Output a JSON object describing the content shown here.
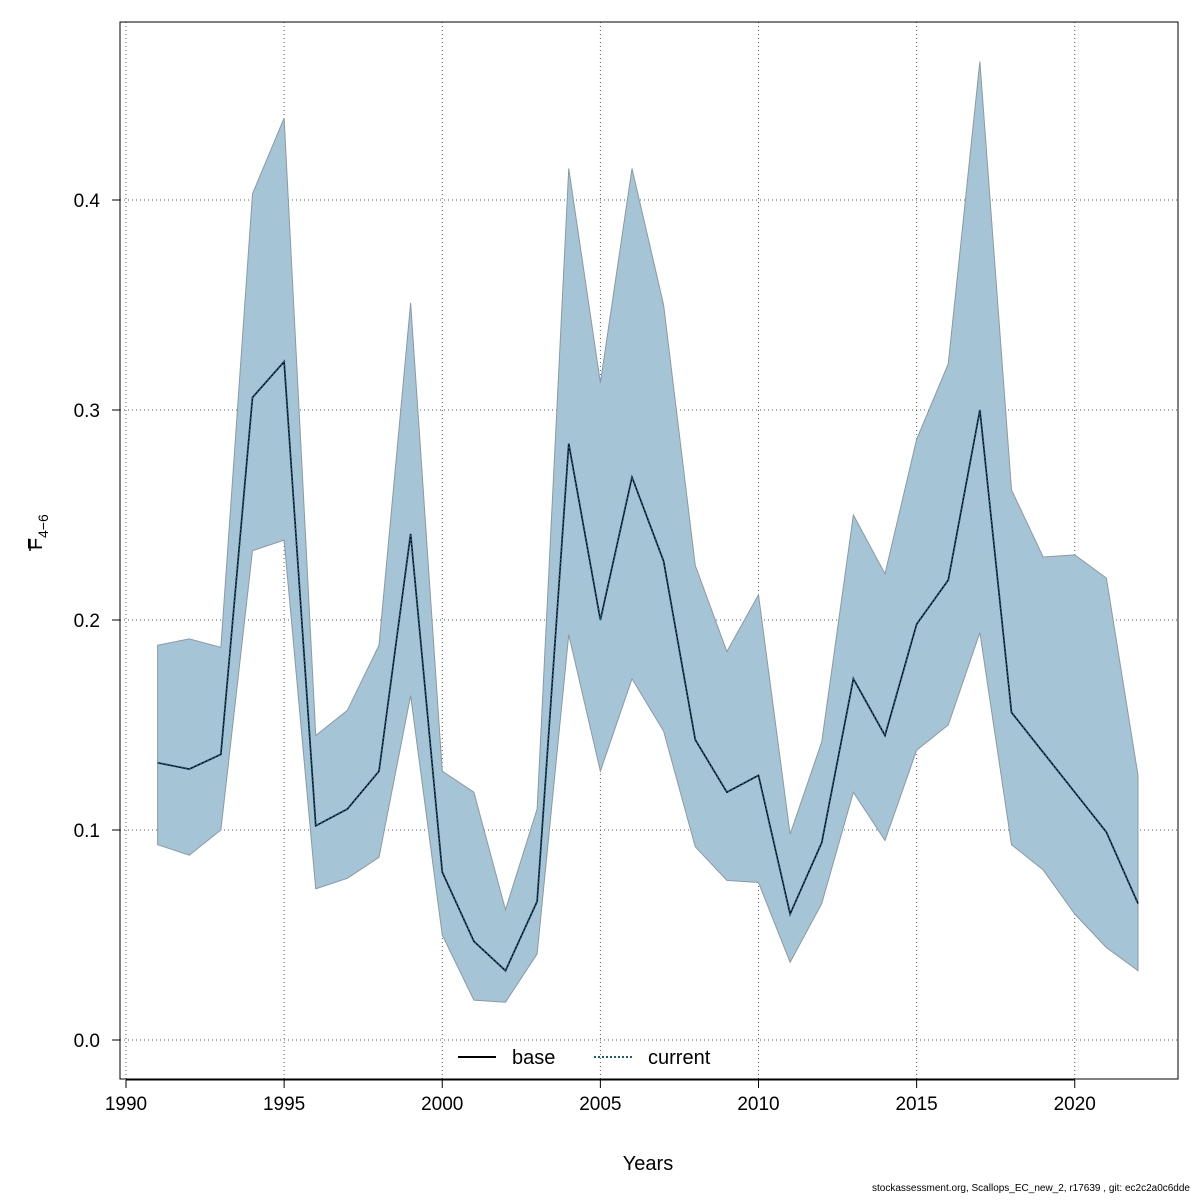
{
  "chart_data": {
    "type": "area",
    "xlabel": "Years",
    "ylabel_main": "F",
    "ylabel_sub": "4−6",
    "xlim": [
      1990,
      2022
    ],
    "ylim": [
      0,
      0.47
    ],
    "x_ticks": [
      1990,
      1995,
      2000,
      2005,
      2010,
      2015,
      2020
    ],
    "y_ticks": [
      0.0,
      0.1,
      0.2,
      0.3,
      0.4
    ],
    "y_tick_labels": [
      "0.0",
      "0.1",
      "0.2",
      "0.3",
      "0.4"
    ],
    "grid": true,
    "legend_placement": "bottom-center",
    "x": [
      1991,
      1992,
      1993,
      1994,
      1995,
      1996,
      1997,
      1998,
      1999,
      2000,
      2001,
      2002,
      2003,
      2004,
      2005,
      2006,
      2007,
      2008,
      2009,
      2010,
      2011,
      2012,
      2013,
      2014,
      2015,
      2016,
      2017,
      2018,
      2019,
      2020,
      2021,
      2022
    ],
    "band_upper": [
      0.188,
      0.191,
      0.187,
      0.403,
      0.439,
      0.145,
      0.157,
      0.188,
      0.351,
      0.128,
      0.118,
      0.062,
      0.11,
      0.415,
      0.313,
      0.415,
      0.35,
      0.226,
      0.185,
      0.212,
      0.098,
      0.142,
      0.25,
      0.222,
      0.286,
      0.322,
      0.466,
      0.262,
      0.23,
      0.231,
      0.22,
      0.126
    ],
    "band_lower": [
      0.093,
      0.088,
      0.1,
      0.233,
      0.238,
      0.072,
      0.077,
      0.087,
      0.164,
      0.05,
      0.019,
      0.018,
      0.041,
      0.193,
      0.128,
      0.172,
      0.147,
      0.092,
      0.076,
      0.075,
      0.037,
      0.065,
      0.118,
      0.095,
      0.138,
      0.15,
      0.194,
      0.093,
      0.081,
      0.06,
      0.044,
      0.033
    ],
    "series": [
      {
        "name": "base",
        "style": "solid",
        "color": "#000000",
        "values": [
          0.132,
          0.129,
          0.136,
          0.306,
          0.323,
          0.102,
          0.11,
          0.128,
          0.241,
          0.08,
          0.047,
          0.033,
          0.066,
          0.284,
          0.2,
          0.268,
          0.228,
          0.143,
          0.118,
          0.126,
          0.06,
          0.094,
          0.172,
          0.145,
          0.198,
          0.219,
          0.3,
          0.156,
          0.137,
          0.118,
          0.099,
          0.065
        ]
      },
      {
        "name": "current",
        "style": "dotted",
        "color": "#1a5a7a",
        "values": [
          0.132,
          0.129,
          0.136,
          0.306,
          0.323,
          0.102,
          0.11,
          0.128,
          0.241,
          0.08,
          0.047,
          0.033,
          0.066,
          0.284,
          0.2,
          0.268,
          0.228,
          0.143,
          0.118,
          0.126,
          0.06,
          0.094,
          0.172,
          0.145,
          0.198,
          0.219,
          0.3,
          0.156,
          0.137,
          0.118,
          0.099,
          0.065
        ]
      }
    ],
    "band_fill_color": "#a5c4d5",
    "band_edge_color": "#8a9aa4"
  },
  "footer": {
    "text": "stockassessment.org, Scallops_EC_new_2, r17639 , git: ec2c2a0c6dde"
  }
}
